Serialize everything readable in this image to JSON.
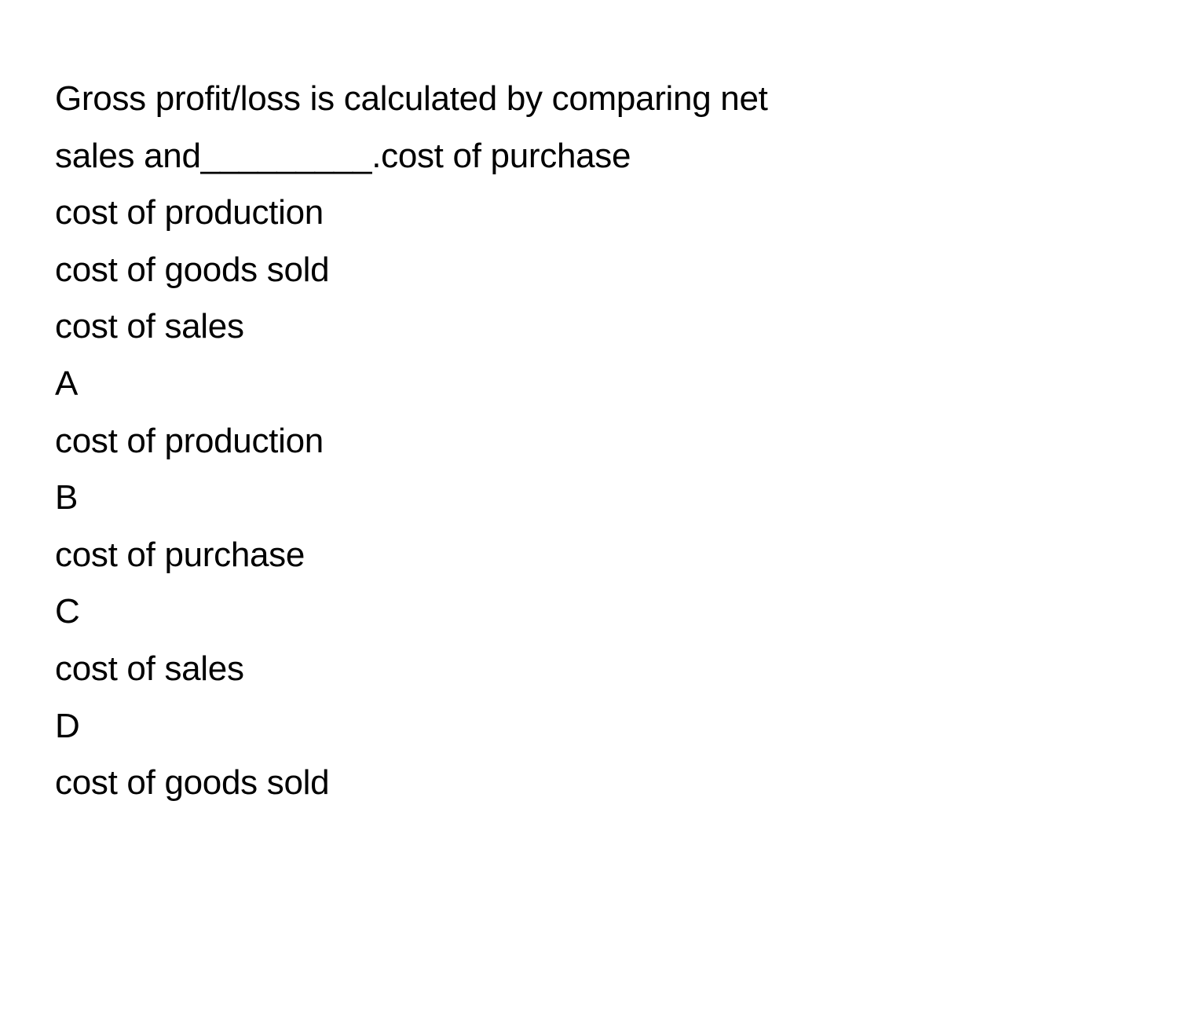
{
  "question": {
    "line1": "Gross profit/loss is calculated by comparing net",
    "line2": "sales and_________.cost of purchase",
    "line3": "cost of production",
    "line4": "cost of goods sold",
    "line5": "cost of sales"
  },
  "options": {
    "a_letter": "A",
    "a_text": "cost of production",
    "b_letter": "B",
    "b_text": "cost of purchase",
    "c_letter": "C",
    "c_text": "cost of sales",
    "d_letter": "D",
    "d_text": "cost of goods sold"
  },
  "styling": {
    "font_size": 44,
    "line_height": 1.65,
    "text_color": "#000000",
    "background_color": "#ffffff",
    "font_weight": 400
  }
}
